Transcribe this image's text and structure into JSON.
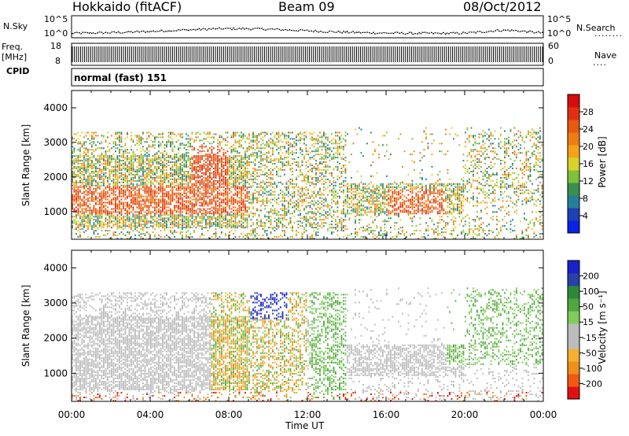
{
  "header": {
    "station": "Hokkaido (fitACF)",
    "beam": "Beam 09",
    "date": "08/Oct/2012"
  },
  "left_labels": {
    "nsky": "N.Sky",
    "freq": "Freq.",
    "freq_unit": "[MHz]",
    "cpid": "CPID"
  },
  "right_labels": {
    "nsearch": "N.Search",
    "nave": "Nave",
    "dots_wide": "········",
    "dots_short": "····"
  },
  "cpid_text": "normal (fast) 151",
  "colors": {
    "power": [
      "#0a22e6",
      "#1e40b4",
      "#24809a",
      "#3b8f4e",
      "#7fc13a",
      "#d8d22a",
      "#f5a21a",
      "#f07a14",
      "#e85a10",
      "#e03010",
      "#d80c0c"
    ],
    "velocity": [
      "#e01010",
      "#f05a10",
      "#f0901a",
      "#f5b030",
      "#bcbcbc",
      "#bcbcbc",
      "#7fcc5a",
      "#4ea83e",
      "#2e8a3a",
      "#2840a8",
      "#1a22c8"
    ]
  },
  "chart_data": [
    {
      "type": "line",
      "name": "noise-panel",
      "left_ticks": [
        "10^5",
        "10^0"
      ],
      "right_ticks": [
        "10^5",
        "10^0"
      ]
    },
    {
      "type": "line",
      "name": "freq-panel",
      "left_ticks": [
        "18",
        "8"
      ],
      "right_ticks": [
        "60",
        "0"
      ],
      "ylim": [
        8,
        18
      ]
    },
    {
      "type": "heatmap",
      "name": "power",
      "ylabel": "Slant Range [km]",
      "xlabel": "",
      "ylim": [
        200,
        4500
      ],
      "yticks": [
        "4000",
        "3000",
        "2000",
        "1000"
      ],
      "colorbar_label": "Power [dB]",
      "colorbar_ticks": [
        "28",
        "24",
        "20",
        "16",
        "12",
        "8",
        "4"
      ]
    },
    {
      "type": "heatmap",
      "name": "velocity",
      "ylabel": "Slant Range [km]",
      "xlabel": "Time UT",
      "ylim": [
        200,
        4500
      ],
      "yticks": [
        "4000",
        "3000",
        "2000",
        "1000"
      ],
      "x_ticks": [
        "00:00",
        "04:00",
        "08:00",
        "12:00",
        "16:00",
        "20:00",
        "00:00"
      ],
      "colorbar_label": "Velocity [m s⁻¹]",
      "colorbar_ticks": [
        "200",
        "100",
        "50",
        "15",
        "-15",
        "-50",
        "-100",
        "-200"
      ]
    }
  ]
}
